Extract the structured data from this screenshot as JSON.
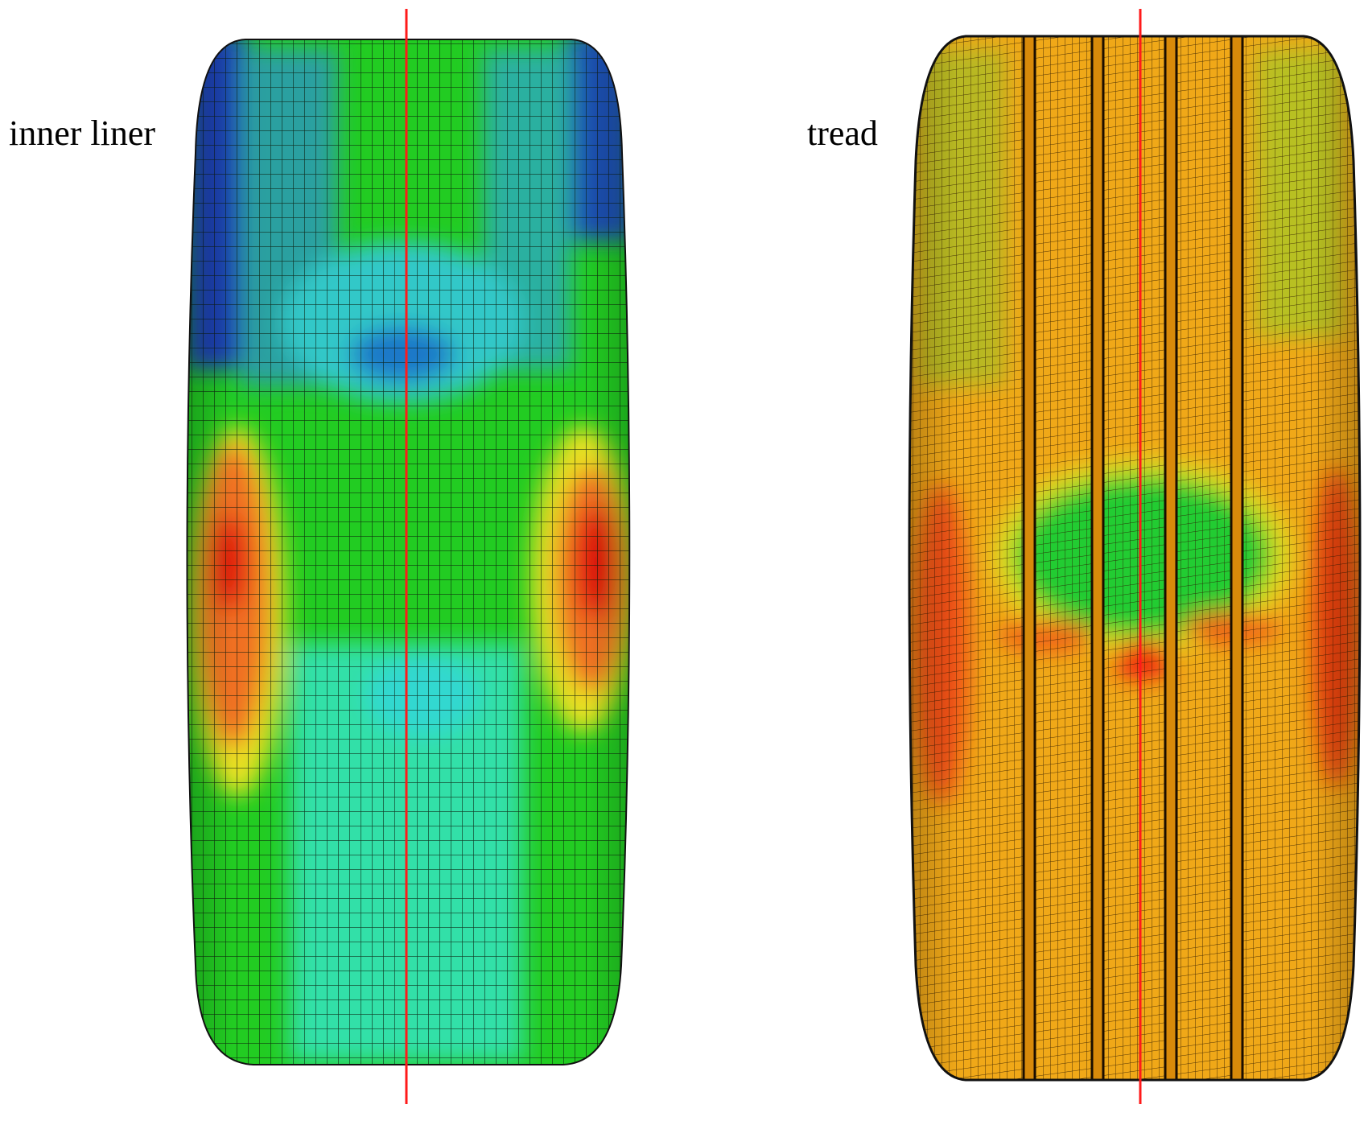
{
  "panels": [
    {
      "label": "inner liner"
    },
    {
      "label": "tread"
    }
  ]
}
